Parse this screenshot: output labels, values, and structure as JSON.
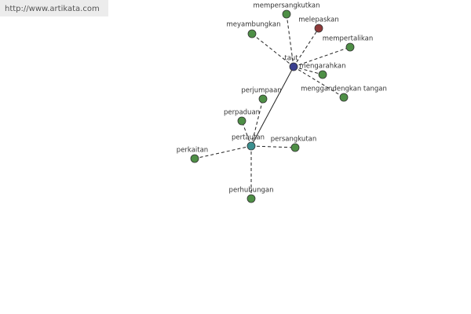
{
  "header": {
    "url": "http://www.artikata.com"
  },
  "nodes": [
    {
      "label": "taut"
    },
    {
      "label": "mempersangkutkan"
    },
    {
      "label": "melepaskan"
    },
    {
      "label": "meyambungkan"
    },
    {
      "label": "mempertalikan"
    },
    {
      "label": "mengarahkan"
    },
    {
      "label": "menggandengkan tangan"
    },
    {
      "label": "perjumpaan"
    },
    {
      "label": "perpaduan"
    },
    {
      "label": "pertautan"
    },
    {
      "label": "persangkutan"
    },
    {
      "label": "perkaitan"
    },
    {
      "label": "perhubungan"
    }
  ]
}
